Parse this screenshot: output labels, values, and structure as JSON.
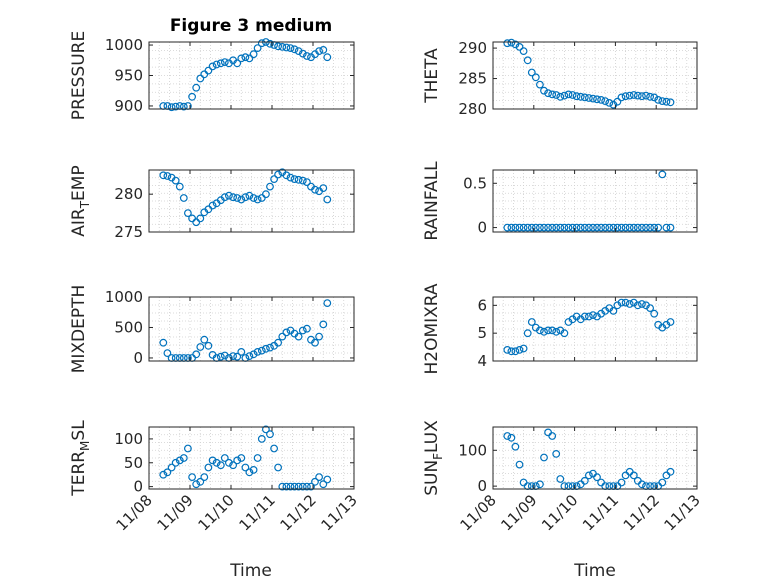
{
  "figure": {
    "title": "Figure 3 medium",
    "xlabel": "Time",
    "x_tick_labels": [
      "11/08",
      "11/09",
      "11/10",
      "11/11",
      "11/12",
      "11/13"
    ],
    "marker_color": "#0072BD"
  },
  "chart_data": [
    {
      "type": "scatter",
      "ylabel": "PRESSURE",
      "ylim": [
        895,
        1005
      ],
      "yticks": [
        900,
        950,
        1000
      ],
      "xlim": [
        "11/08",
        "11/13"
      ],
      "grid": true,
      "x": [
        0.35,
        0.45,
        0.55,
        0.65,
        0.75,
        0.85,
        0.95,
        1.05,
        1.15,
        1.25,
        1.35,
        1.45,
        1.55,
        1.65,
        1.75,
        1.85,
        1.95,
        2.05,
        2.15,
        2.25,
        2.35,
        2.45,
        2.55,
        2.65,
        2.75,
        2.85,
        2.95,
        3.05,
        3.15,
        3.25,
        3.35,
        3.45,
        3.55,
        3.65,
        3.75,
        3.85,
        3.95,
        4.05,
        4.15,
        4.25,
        4.35
      ],
      "y": [
        900,
        900,
        898,
        899,
        900,
        899,
        900,
        915,
        930,
        945,
        952,
        958,
        965,
        968,
        970,
        972,
        970,
        975,
        970,
        978,
        980,
        978,
        985,
        995,
        1003,
        1005,
        1002,
        1000,
        998,
        997,
        996,
        995,
        993,
        990,
        986,
        982,
        980,
        985,
        990,
        992,
        980
      ]
    },
    {
      "type": "scatter",
      "ylabel": "THETA",
      "ylim": [
        280,
        291
      ],
      "yticks": [
        280,
        285,
        290
      ],
      "xlim": [
        "11/08",
        "11/13"
      ],
      "grid": true,
      "x": [
        0.35,
        0.45,
        0.55,
        0.65,
        0.75,
        0.85,
        0.95,
        1.05,
        1.15,
        1.25,
        1.35,
        1.45,
        1.55,
        1.65,
        1.75,
        1.85,
        1.95,
        2.05,
        2.15,
        2.25,
        2.35,
        2.45,
        2.55,
        2.65,
        2.75,
        2.85,
        2.95,
        3.05,
        3.15,
        3.25,
        3.35,
        3.45,
        3.55,
        3.65,
        3.75,
        3.85,
        3.95,
        4.05,
        4.15,
        4.25,
        4.35
      ],
      "y": [
        290.8,
        290.9,
        290.6,
        290.2,
        289.5,
        288,
        286,
        285.2,
        284,
        283,
        282.6,
        282.4,
        282.3,
        282,
        282.2,
        282.4,
        282.3,
        282.1,
        282,
        281.9,
        281.8,
        281.7,
        281.6,
        281.5,
        281.3,
        281,
        280.7,
        281.2,
        281.9,
        282.1,
        282.2,
        282.3,
        282.2,
        282.1,
        282.2,
        282,
        281.9,
        281.5,
        281.3,
        281.2,
        281.1
      ]
    },
    {
      "type": "scatter",
      "ylabel": "AIR_TEMP",
      "ylim": [
        275,
        283.2
      ],
      "yticks": [
        275,
        280
      ],
      "xlim": [
        "11/08",
        "11/13"
      ],
      "grid": true,
      "x": [
        0.35,
        0.45,
        0.55,
        0.65,
        0.75,
        0.85,
        0.95,
        1.05,
        1.15,
        1.25,
        1.35,
        1.45,
        1.55,
        1.65,
        1.75,
        1.85,
        1.95,
        2.05,
        2.15,
        2.25,
        2.35,
        2.45,
        2.55,
        2.65,
        2.75,
        2.85,
        2.95,
        3.05,
        3.15,
        3.25,
        3.35,
        3.45,
        3.55,
        3.65,
        3.75,
        3.85,
        3.95,
        4.05,
        4.15,
        4.25,
        4.35
      ],
      "y": [
        282.5,
        282.4,
        282.2,
        281.8,
        281,
        279.5,
        277.5,
        276.8,
        276.3,
        276.8,
        277.6,
        278,
        278.5,
        278.8,
        279.2,
        279.6,
        279.8,
        279.6,
        279.5,
        279.3,
        279.6,
        279.8,
        279.5,
        279.3,
        279.5,
        280,
        281,
        282,
        282.6,
        282.9,
        282.5,
        282.2,
        282,
        281.9,
        281.8,
        281.6,
        281,
        280.6,
        280.4,
        280.8,
        279.3
      ]
    },
    {
      "type": "scatter",
      "ylabel": "RAINFALL",
      "ylim": [
        -0.05,
        0.65
      ],
      "yticks": [
        0,
        0.5
      ],
      "xlim": [
        "11/08",
        "11/13"
      ],
      "grid": true,
      "x": [
        0.35,
        0.45,
        0.55,
        0.65,
        0.75,
        0.85,
        0.95,
        1.05,
        1.15,
        1.25,
        1.35,
        1.45,
        1.55,
        1.65,
        1.75,
        1.85,
        1.95,
        2.05,
        2.15,
        2.25,
        2.35,
        2.45,
        2.55,
        2.65,
        2.75,
        2.85,
        2.95,
        3.05,
        3.15,
        3.25,
        3.35,
        3.45,
        3.55,
        3.65,
        3.75,
        3.85,
        3.95,
        4.05,
        4.15,
        4.25,
        4.35
      ],
      "y": [
        0,
        0,
        0,
        0,
        0,
        0,
        0,
        0,
        0,
        0,
        0,
        0,
        0,
        0,
        0,
        0,
        0,
        0,
        0,
        0,
        0,
        0,
        0,
        0,
        0,
        0,
        0,
        0,
        0,
        0,
        0,
        0,
        0,
        0,
        0,
        0,
        0,
        0,
        0.6,
        0,
        0
      ]
    },
    {
      "type": "scatter",
      "ylabel": "MIXDEPTH",
      "ylim": [
        -50,
        1000
      ],
      "yticks": [
        0,
        500,
        1000
      ],
      "xlim": [
        "11/08",
        "11/13"
      ],
      "grid": true,
      "x": [
        0.35,
        0.45,
        0.55,
        0.65,
        0.75,
        0.85,
        0.95,
        1.05,
        1.15,
        1.25,
        1.35,
        1.45,
        1.55,
        1.65,
        1.75,
        1.85,
        1.95,
        2.05,
        2.15,
        2.25,
        2.35,
        2.45,
        2.55,
        2.65,
        2.75,
        2.85,
        2.95,
        3.05,
        3.15,
        3.25,
        3.35,
        3.45,
        3.55,
        3.65,
        3.75,
        3.85,
        3.95,
        4.05,
        4.15,
        4.25,
        4.35
      ],
      "y": [
        250,
        80,
        0,
        0,
        0,
        0,
        0,
        0,
        60,
        180,
        300,
        200,
        50,
        0,
        20,
        40,
        0,
        30,
        20,
        100,
        0,
        30,
        60,
        100,
        120,
        150,
        170,
        200,
        250,
        350,
        420,
        450,
        400,
        350,
        450,
        480,
        300,
        250,
        350,
        550,
        900
      ]
    },
    {
      "type": "scatter",
      "ylabel": "H2OMIXRA",
      "ylim": [
        4,
        6.3
      ],
      "yticks": [
        4,
        5,
        6
      ],
      "xlim": [
        "11/08",
        "11/13"
      ],
      "grid": true,
      "x": [
        0.35,
        0.45,
        0.55,
        0.65,
        0.75,
        0.85,
        0.95,
        1.05,
        1.15,
        1.25,
        1.35,
        1.45,
        1.55,
        1.65,
        1.75,
        1.85,
        1.95,
        2.05,
        2.15,
        2.25,
        2.35,
        2.45,
        2.55,
        2.65,
        2.75,
        2.85,
        2.95,
        3.05,
        3.15,
        3.25,
        3.35,
        3.45,
        3.55,
        3.65,
        3.75,
        3.85,
        3.95,
        4.05,
        4.15,
        4.25,
        4.35
      ],
      "y": [
        4.4,
        4.35,
        4.35,
        4.4,
        4.45,
        5,
        5.4,
        5.2,
        5.1,
        5.05,
        5.1,
        5.1,
        5.05,
        5.1,
        5.0,
        5.4,
        5.5,
        5.6,
        5.5,
        5.6,
        5.6,
        5.65,
        5.6,
        5.7,
        5.8,
        5.9,
        5.8,
        6.0,
        6.1,
        6.1,
        6.05,
        6.1,
        6.0,
        6.05,
        6.0,
        5.9,
        5.7,
        5.3,
        5.2,
        5.3,
        5.4
      ]
    },
    {
      "type": "scatter",
      "ylabel": "TERR_MSL",
      "ylim": [
        -5,
        125
      ],
      "yticks": [
        0,
        50,
        100
      ],
      "xlim": [
        "11/08",
        "11/13"
      ],
      "grid": true,
      "x": [
        0.35,
        0.45,
        0.55,
        0.65,
        0.75,
        0.85,
        0.95,
        1.05,
        1.15,
        1.25,
        1.35,
        1.45,
        1.55,
        1.65,
        1.75,
        1.85,
        1.95,
        2.05,
        2.15,
        2.25,
        2.35,
        2.45,
        2.55,
        2.65,
        2.75,
        2.85,
        2.95,
        3.05,
        3.15,
        3.25,
        3.35,
        3.45,
        3.55,
        3.65,
        3.75,
        3.85,
        3.95,
        4.05,
        4.15,
        4.25,
        4.35
      ],
      "y": [
        25,
        30,
        40,
        50,
        55,
        60,
        80,
        20,
        5,
        10,
        20,
        40,
        55,
        50,
        45,
        60,
        50,
        45,
        55,
        60,
        40,
        30,
        35,
        60,
        100,
        120,
        110,
        80,
        40,
        0,
        0,
        0,
        0,
        0,
        0,
        0,
        0,
        10,
        20,
        5,
        15
      ]
    },
    {
      "type": "scatter",
      "ylabel": "SUN_FLUX",
      "ylim": [
        -8,
        165
      ],
      "yticks": [
        0,
        100
      ],
      "xlim": [
        "11/08",
        "11/13"
      ],
      "grid": true,
      "x": [
        0.35,
        0.45,
        0.55,
        0.65,
        0.75,
        0.85,
        0.95,
        1.05,
        1.15,
        1.25,
        1.35,
        1.45,
        1.55,
        1.65,
        1.75,
        1.85,
        1.95,
        2.05,
        2.15,
        2.25,
        2.35,
        2.45,
        2.55,
        2.65,
        2.75,
        2.85,
        2.95,
        3.05,
        3.15,
        3.25,
        3.35,
        3.45,
        3.55,
        3.65,
        3.75,
        3.85,
        3.95,
        4.05,
        4.15,
        4.25,
        4.35
      ],
      "y": [
        140,
        135,
        110,
        60,
        10,
        0,
        0,
        0,
        5,
        80,
        150,
        140,
        90,
        20,
        0,
        0,
        0,
        0,
        5,
        15,
        30,
        35,
        25,
        10,
        0,
        0,
        0,
        0,
        10,
        30,
        40,
        30,
        15,
        5,
        0,
        0,
        0,
        0,
        10,
        30,
        40
      ]
    }
  ]
}
